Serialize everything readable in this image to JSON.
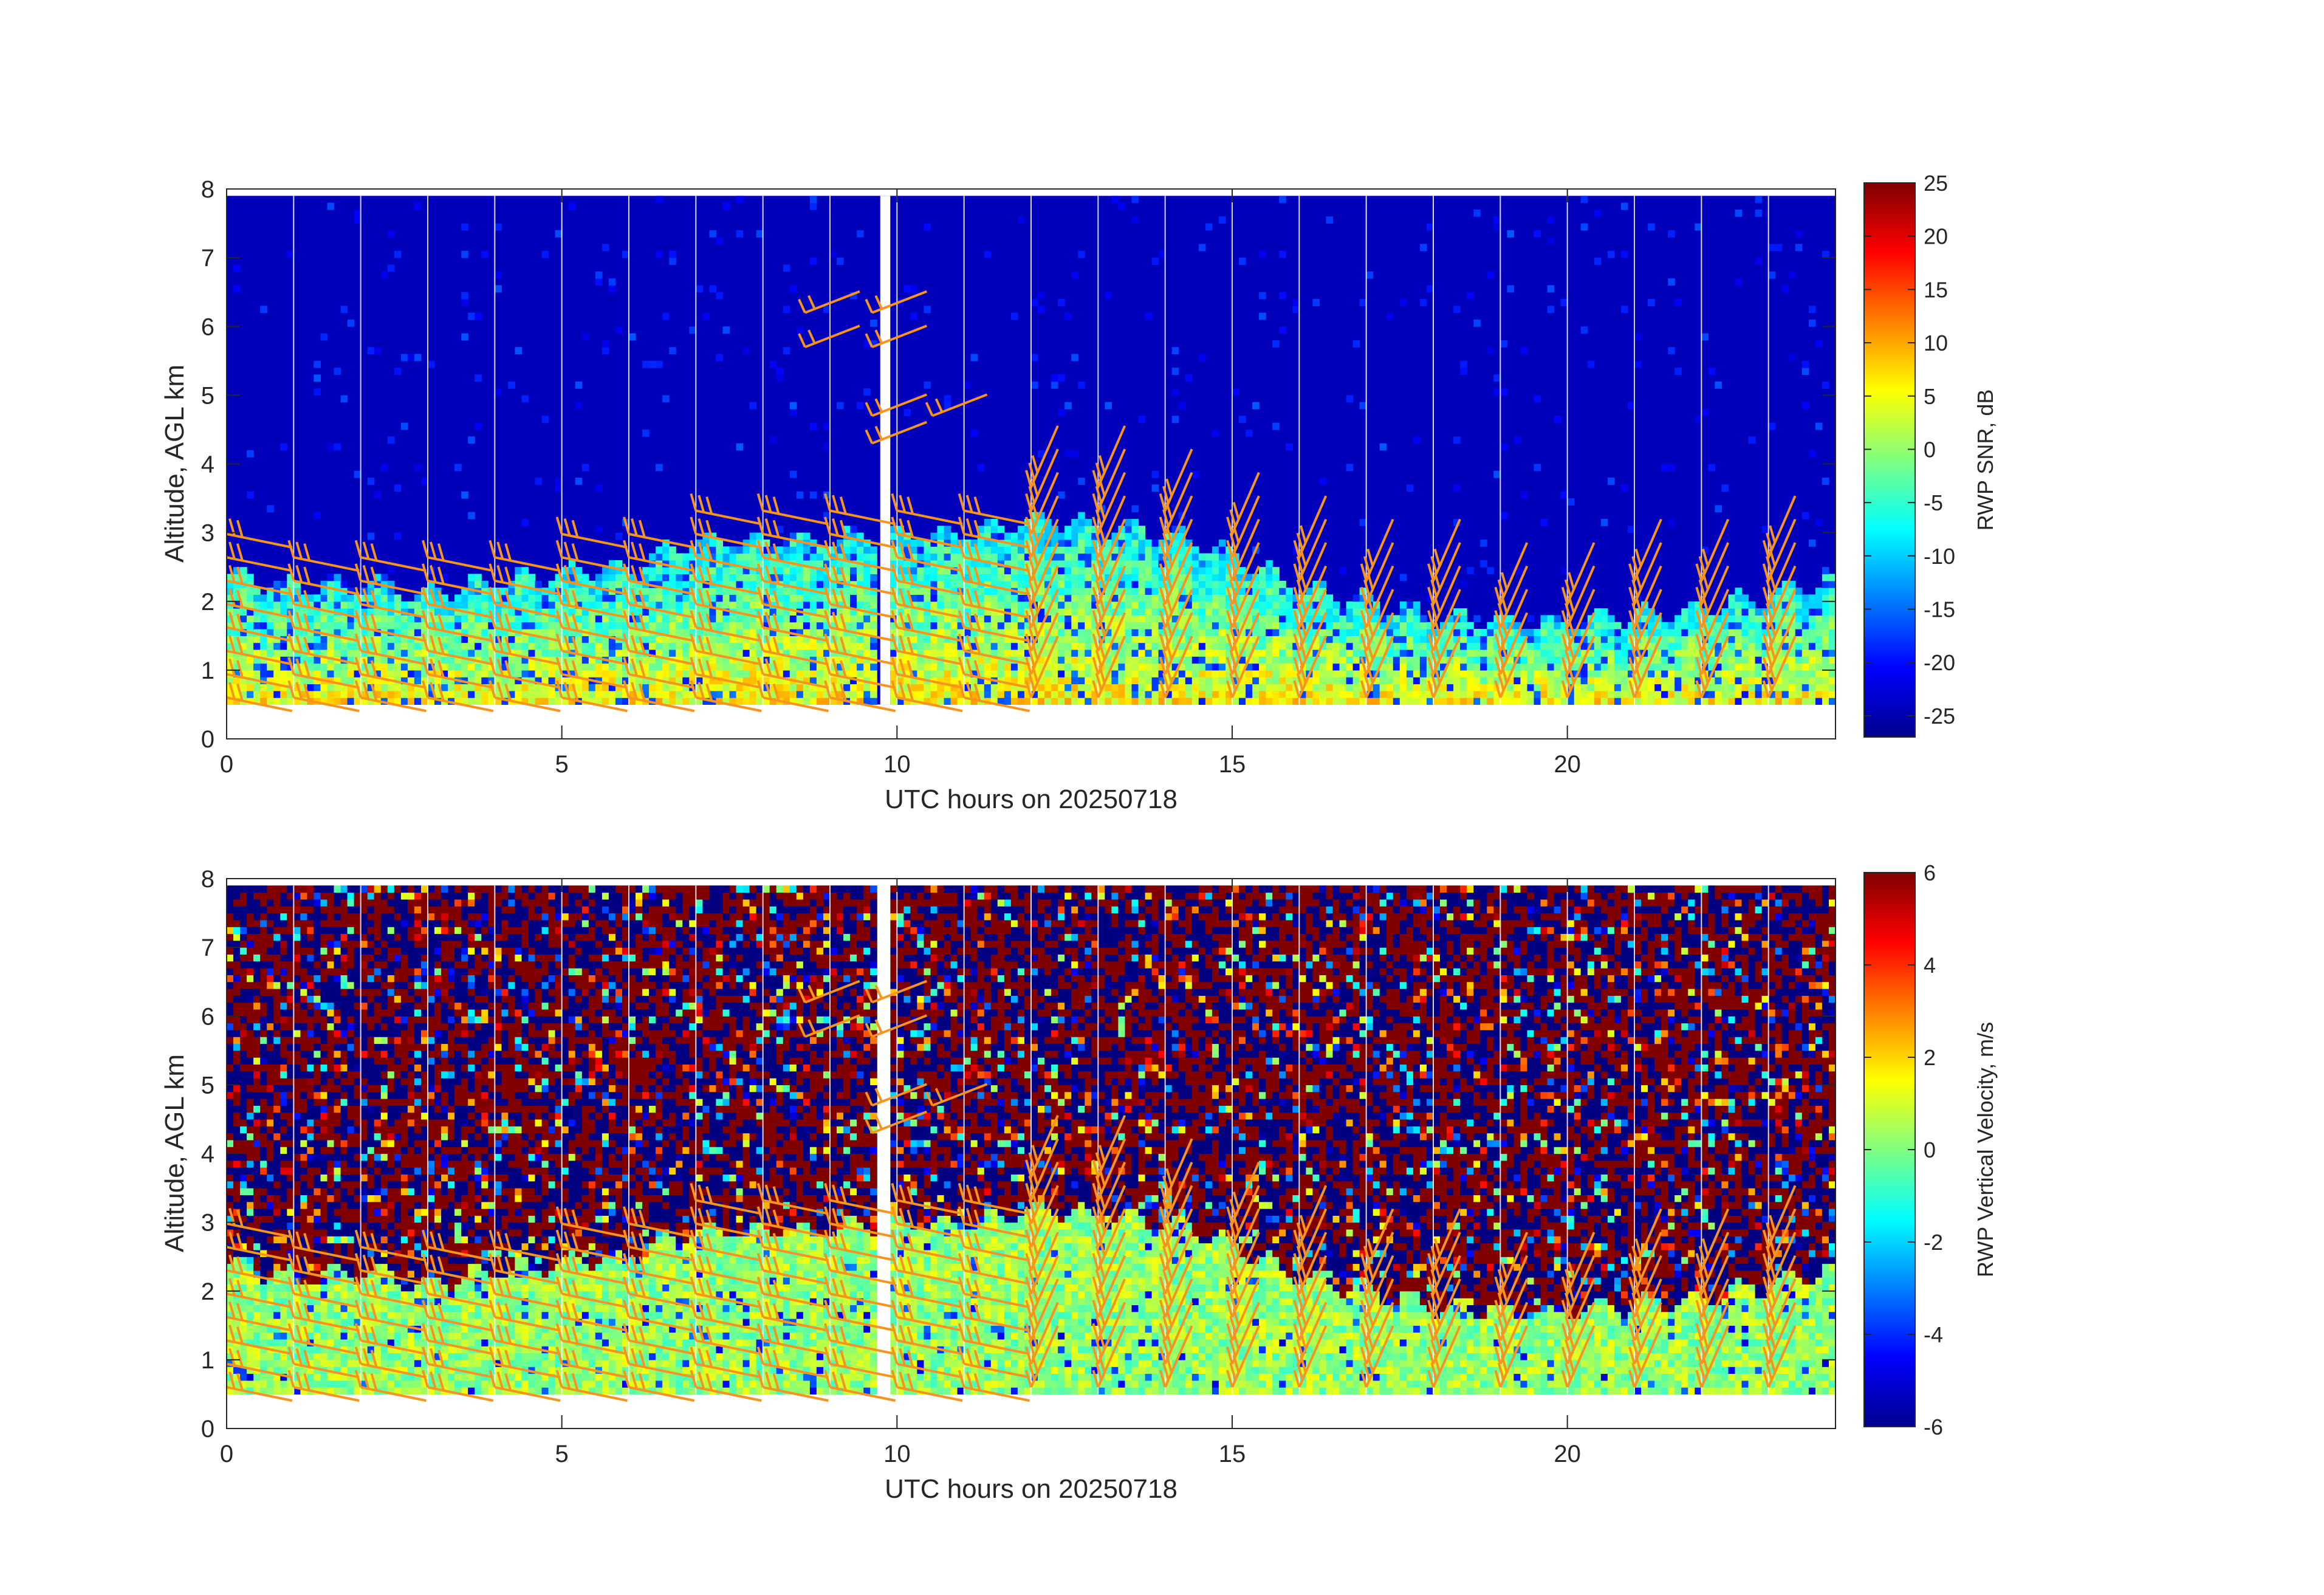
{
  "figure": {
    "background": "#ffffff",
    "axis_color": "#262626",
    "barb_color": "#F7941D",
    "gap_color": "#ffffff"
  },
  "chart_data": [
    {
      "type": "heatmap",
      "title": "",
      "xlabel": "UTC hours on 20250718",
      "ylabel": "Altitude, AGL km",
      "xlim": [
        0,
        24
      ],
      "ylim": [
        0,
        8
      ],
      "xticks": [
        0,
        5,
        10,
        15,
        20
      ],
      "yticks": [
        0,
        1,
        2,
        3,
        4,
        5,
        6,
        7,
        8
      ],
      "colormap": "jet",
      "colorbar": {
        "label": "RWP SNR, dB",
        "range": [
          -27,
          25
        ],
        "ticks": [
          25,
          20,
          15,
          10,
          5,
          0,
          -5,
          -10,
          -15,
          -20,
          -25
        ]
      },
      "data_altitude_range_km": [
        0.5,
        7.9
      ],
      "boundary_layer_top_km": [
        [
          0,
          2.4
        ],
        [
          1,
          2.2
        ],
        [
          2,
          2.3
        ],
        [
          3,
          2.1
        ],
        [
          4,
          2.3
        ],
        [
          5,
          2.4
        ],
        [
          6,
          2.5
        ],
        [
          7,
          2.9
        ],
        [
          8,
          2.9
        ],
        [
          9,
          2.9
        ],
        [
          10,
          3.0
        ],
        [
          11,
          3.0
        ],
        [
          12,
          3.2
        ],
        [
          13,
          3.1
        ],
        [
          14,
          3.0
        ],
        [
          15,
          2.7
        ],
        [
          16,
          2.2
        ],
        [
          17,
          2.0
        ],
        [
          18,
          1.8
        ],
        [
          19,
          1.7
        ],
        [
          20,
          1.7
        ],
        [
          21,
          1.8
        ],
        [
          22,
          1.9
        ],
        [
          23,
          2.1
        ],
        [
          24,
          2.3
        ]
      ],
      "data_gap_hours": [
        [
          9.75,
          9.9
        ]
      ],
      "background_snr_db": -24,
      "boundary_layer_snr_db": [
        -12,
        6
      ],
      "wind_barbs": "orange barbs at hourly intervals overlaid on both panels"
    },
    {
      "type": "heatmap",
      "title": "",
      "xlabel": "UTC hours on 20250718",
      "ylabel": "Altitude, AGL km",
      "xlim": [
        0,
        24
      ],
      "ylim": [
        0,
        8
      ],
      "xticks": [
        0,
        5,
        10,
        15,
        20
      ],
      "yticks": [
        0,
        1,
        2,
        3,
        4,
        5,
        6,
        7,
        8
      ],
      "colormap": "jet",
      "colorbar": {
        "label": "RWP Vertical Velocity, m/s",
        "range": [
          -6,
          6
        ],
        "ticks": [
          6,
          4,
          2,
          0,
          -2,
          -4,
          -6
        ]
      },
      "data_altitude_range_km": [
        0.5,
        7.9
      ],
      "data_gap_hours": [
        [
          9.75,
          9.9
        ]
      ],
      "boundary_layer_velocity_ms": [
        -1,
        1.5
      ],
      "upper_level_velocity_ms": "noise, mostly saturated at ±6"
    }
  ]
}
